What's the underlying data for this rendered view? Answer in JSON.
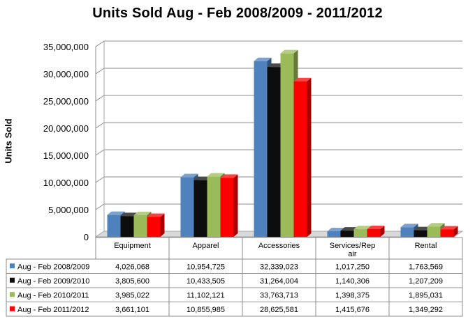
{
  "chart_data": {
    "type": "bar",
    "title": "Units Sold Aug - Feb 2008/2009 - 2011/2012",
    "ylabel": "Units Sold",
    "xlabel": "",
    "ylim": [
      0,
      35000000
    ],
    "yticks": [
      "0",
      "5,000,000",
      "10,000,000",
      "15,000,000",
      "20,000,000",
      "25,000,000",
      "30,000,000",
      "35,000,000"
    ],
    "ytick_values": [
      0,
      5000000,
      10000000,
      15000000,
      20000000,
      25000000,
      30000000,
      35000000
    ],
    "grid": true,
    "style": "3d-clustered-column-with-data-table",
    "categories": [
      "Equipment",
      "Apparel",
      "Accessories",
      "Services/Rep air",
      "Rental"
    ],
    "series": [
      {
        "name": "Aug - Feb 2008/2009",
        "color": "#4f81bd",
        "values": [
          4026068,
          10954725,
          32339023,
          1017250,
          1763569
        ],
        "labels": [
          "4,026,068",
          "10,954,725",
          "32,339,023",
          "1,017,250",
          "1,763,569"
        ]
      },
      {
        "name": "Aug - Feb 2009/2010",
        "color": "#0d0d0d",
        "values": [
          3805600,
          10433505,
          31264004,
          1140306,
          1207209
        ],
        "labels": [
          "3,805,600",
          "10,433,505",
          "31,264,004",
          "1,140,306",
          "1,207,209"
        ]
      },
      {
        "name": "Aug - Feb 2010/2011",
        "color": "#9bbb59",
        "values": [
          3985022,
          11102121,
          33763713,
          1398375,
          1895031
        ],
        "labels": [
          "3,985,022",
          "11,102,121",
          "33,763,713",
          "1,398,375",
          "1,895,031"
        ]
      },
      {
        "name": "Aug - Feb 2011/2012",
        "color": "#ff0000",
        "values": [
          3661101,
          10855985,
          28625581,
          1415676,
          1349292
        ],
        "labels": [
          "3,661,101",
          "10,855,985",
          "28,625,581",
          "1,415,676",
          "1,349,292"
        ]
      }
    ]
  }
}
